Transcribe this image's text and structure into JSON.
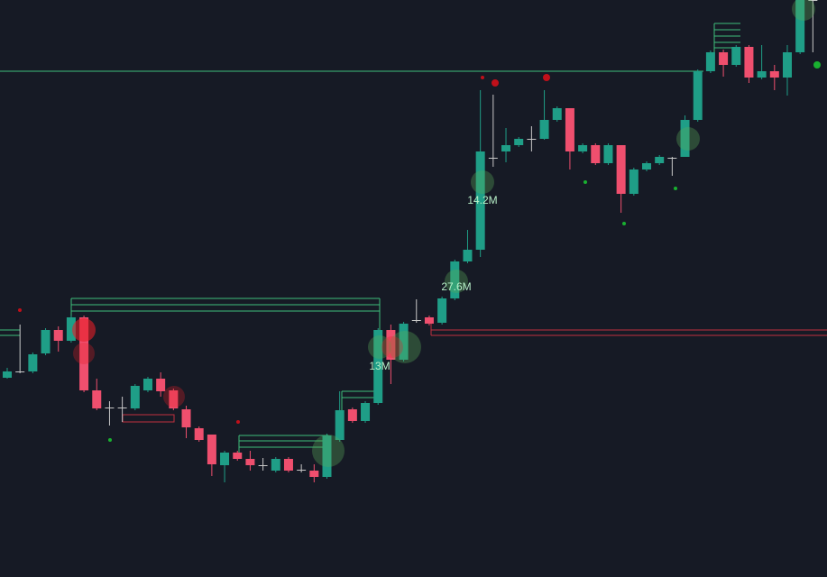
{
  "chart_data": {
    "type": "candlestick",
    "up_color": "#1f9e87",
    "down_color": "#ef4f6e",
    "ylim": [
      0,
      640
    ],
    "open": [
      221,
      228,
      228,
      248,
      274,
      262,
      288,
      207,
      188,
      188,
      187,
      207,
      220,
      207,
      186,
      165,
      158,
      124,
      138,
      131,
      124,
      118,
      131,
      119,
      118,
      111,
      152,
      186,
      173,
      193,
      274,
      241,
      285,
      288,
      282,
      309,
      350,
      363,
      465,
      472,
      479,
      486,
      486,
      507,
      520,
      472,
      479,
      459,
      479,
      425,
      452,
      459,
      465,
      466,
      507,
      561,
      582,
      568,
      588,
      554,
      561,
      554,
      582,
      640
    ],
    "high": [
      232,
      280,
      249,
      276,
      278,
      290,
      290,
      220,
      195,
      200,
      214,
      222,
      227,
      209,
      190,
      167,
      158,
      140,
      140,
      140,
      132,
      133,
      133,
      125,
      125,
      159,
      206,
      188,
      195,
      276,
      280,
      283,
      308,
      290,
      311,
      352,
      385,
      540,
      535,
      498,
      488,
      500,
      540,
      522,
      520,
      481,
      481,
      481,
      479,
      454,
      461,
      468,
      466,
      512,
      563,
      584,
      585,
      590,
      590,
      590,
      568,
      590,
      640,
      640
    ],
    "low": [
      220,
      226,
      226,
      246,
      250,
      260,
      205,
      185,
      168,
      172,
      185,
      205,
      200,
      185,
      154,
      150,
      112,
      105,
      129,
      118,
      118,
      116,
      116,
      116,
      105,
      109,
      150,
      171,
      171,
      191,
      214,
      239,
      282,
      279,
      280,
      307,
      348,
      355,
      455,
      460,
      477,
      472,
      485,
      505,
      452,
      470,
      457,
      457,
      404,
      423,
      450,
      457,
      445,
      466,
      505,
      559,
      555,
      566,
      548,
      552,
      540,
      534,
      580,
      582
    ],
    "close": [
      228,
      228,
      247,
      274,
      262,
      288,
      207,
      187,
      188,
      188,
      212,
      220,
      206,
      187,
      166,
      152,
      125,
      138,
      131,
      124,
      124,
      131,
      118,
      119,
      111,
      157,
      185,
      173,
      193,
      274,
      241,
      281,
      285,
      281,
      309,
      350,
      363,
      472,
      465,
      479,
      486,
      486,
      507,
      520,
      472,
      479,
      459,
      479,
      425,
      452,
      459,
      466,
      465,
      507,
      561,
      582,
      568,
      588,
      554,
      561,
      554,
      582,
      640,
      640
    ],
    "annotations": [
      "14.2M",
      "27.6M",
      "13M"
    ]
  }
}
